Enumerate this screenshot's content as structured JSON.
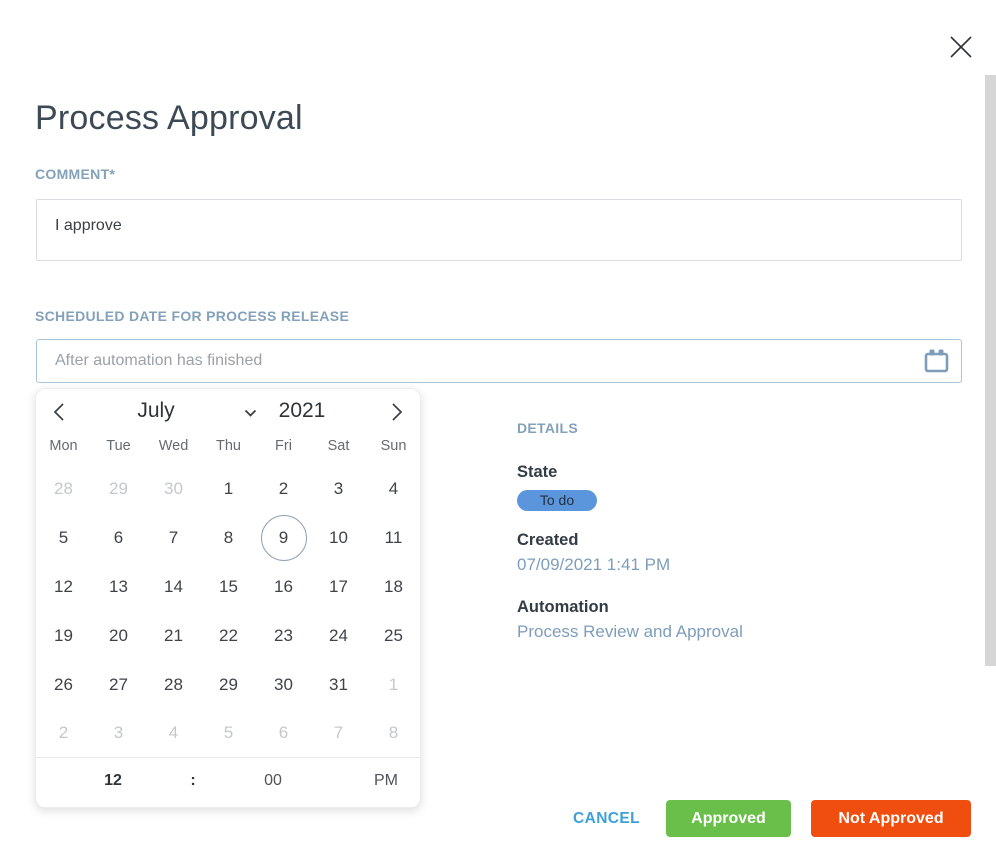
{
  "modal": {
    "title": "Process Approval",
    "close_icon": "close-icon"
  },
  "comment": {
    "label": "COMMENT*",
    "value": "I approve"
  },
  "schedule": {
    "label": "SCHEDULED DATE FOR PROCESS RELEASE",
    "placeholder": "After automation has finished",
    "icon": "calendar-icon"
  },
  "datepicker": {
    "month": "July",
    "year": "2021",
    "nav_icons": [
      "chevron-left-icon",
      "chevron-down-icon",
      "chevron-right-icon"
    ],
    "day_names": [
      "Mon",
      "Tue",
      "Wed",
      "Thu",
      "Fri",
      "Sat",
      "Sun"
    ],
    "weeks": [
      [
        {
          "d": "28",
          "muted": true
        },
        {
          "d": "29",
          "muted": true
        },
        {
          "d": "30",
          "muted": true
        },
        {
          "d": "1"
        },
        {
          "d": "2"
        },
        {
          "d": "3"
        },
        {
          "d": "4"
        }
      ],
      [
        {
          "d": "5"
        },
        {
          "d": "6"
        },
        {
          "d": "7"
        },
        {
          "d": "8"
        },
        {
          "d": "9",
          "selected": true
        },
        {
          "d": "10"
        },
        {
          "d": "11"
        }
      ],
      [
        {
          "d": "12"
        },
        {
          "d": "13"
        },
        {
          "d": "14"
        },
        {
          "d": "15"
        },
        {
          "d": "16"
        },
        {
          "d": "17"
        },
        {
          "d": "18"
        }
      ],
      [
        {
          "d": "19"
        },
        {
          "d": "20"
        },
        {
          "d": "21"
        },
        {
          "d": "22"
        },
        {
          "d": "23"
        },
        {
          "d": "24"
        },
        {
          "d": "25"
        }
      ],
      [
        {
          "d": "26"
        },
        {
          "d": "27"
        },
        {
          "d": "28"
        },
        {
          "d": "29"
        },
        {
          "d": "30"
        },
        {
          "d": "31"
        },
        {
          "d": "1",
          "muted": true
        }
      ],
      [
        {
          "d": "2",
          "muted": true
        },
        {
          "d": "3",
          "muted": true
        },
        {
          "d": "4",
          "muted": true
        },
        {
          "d": "5",
          "muted": true
        },
        {
          "d": "6",
          "muted": true
        },
        {
          "d": "7",
          "muted": true
        },
        {
          "d": "8",
          "muted": true
        }
      ]
    ],
    "selected_day": "9",
    "time": {
      "hour": "12",
      "separator": ":",
      "minute": "00",
      "meridiem": "PM"
    }
  },
  "details": {
    "heading": "DETAILS",
    "state_label": "State",
    "state_value": "To do",
    "created_label": "Created",
    "created_value": "07/09/2021 1:41 PM",
    "automation_label": "Automation",
    "automation_value": "Process Review and Approval"
  },
  "footer": {
    "cancel_label": "CANCEL",
    "approve_label": "Approved",
    "reject_label": "Not Approved"
  },
  "colors": {
    "accent_label": "#84a1ba",
    "link": "#7e9dbb",
    "badge_bg": "#5b95dc",
    "badge_text": "#20313f",
    "cancel": "#3da0d9",
    "approve": "#6abf4b",
    "reject": "#f04e0e",
    "date_input_border": "#a9c4da",
    "selected_day_ring": "#93a2b4"
  }
}
